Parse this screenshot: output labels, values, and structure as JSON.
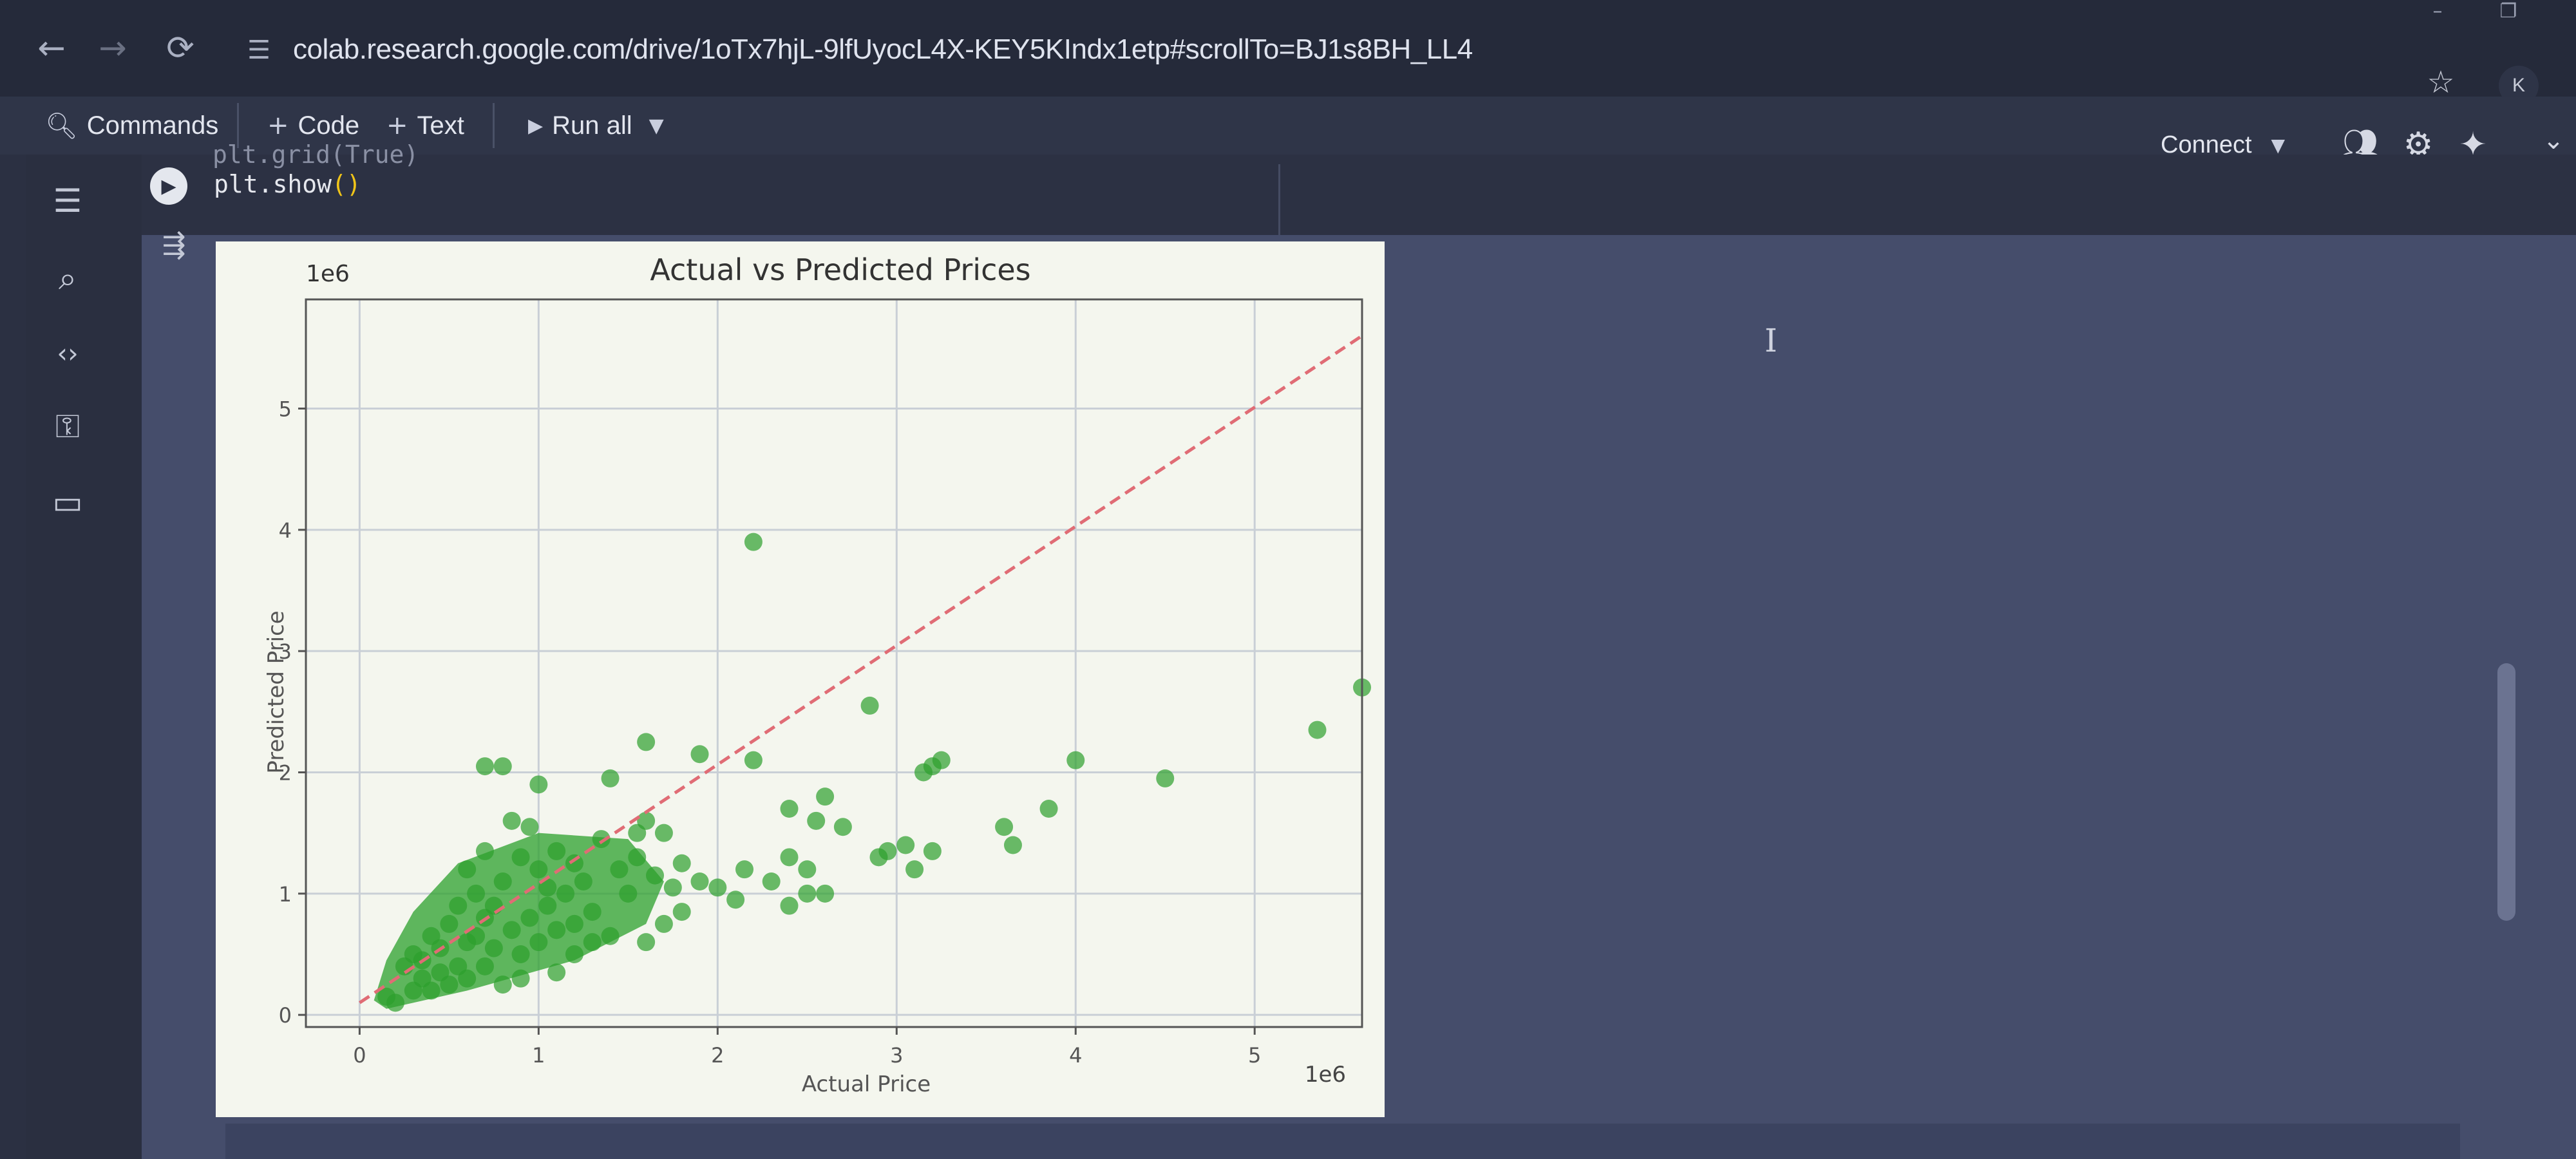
{
  "browser": {
    "url": "colab.research.google.com/drive/1oTx7hjL-9lfUyocL4X-KEY5KIndx1etp#scrollTo=BJ1s8BH_LL4",
    "profile_initial": "K",
    "icons": [
      "back-icon",
      "forward-icon",
      "reload-icon",
      "site-info-icon",
      "bookmark-star-icon"
    ]
  },
  "toolbar": {
    "commands_label": "Commands",
    "code_label": "Code",
    "text_label": "Text",
    "run_all_label": "Run all",
    "connect_label": "Connect"
  },
  "code_cell": {
    "partial_line": "plt.grid(True)",
    "line": "plt.show"
  },
  "chart_data": {
    "type": "scatter",
    "title": "Actual vs Predicted Prices",
    "xlabel": "Actual Price",
    "ylabel": "Predicted Price",
    "x_offset_label": "1e6",
    "y_offset_label": "1e6",
    "xlim": [
      -0.3,
      5.6
    ],
    "ylim": [
      -0.1,
      5.9
    ],
    "xticks": [
      0,
      1,
      2,
      3,
      4,
      5
    ],
    "yticks": [
      0,
      1,
      2,
      3,
      4,
      5
    ],
    "grid": true,
    "point_color": "#2ca02c",
    "reference_line": {
      "style": "dashed",
      "color": "#e06c75",
      "from": [
        0,
        0.1
      ],
      "to": [
        5.6,
        5.6
      ]
    },
    "points": [
      [
        2.2,
        3.9
      ],
      [
        2.85,
        2.55
      ],
      [
        5.6,
        2.7
      ],
      [
        5.35,
        2.35
      ],
      [
        4.5,
        1.95
      ],
      [
        4.0,
        2.1
      ],
      [
        3.85,
        1.7
      ],
      [
        3.6,
        1.55
      ],
      [
        3.65,
        1.4
      ],
      [
        3.25,
        2.1
      ],
      [
        3.2,
        2.05
      ],
      [
        3.15,
        2.0
      ],
      [
        2.2,
        2.1
      ],
      [
        1.9,
        2.15
      ],
      [
        1.6,
        2.25
      ],
      [
        1.4,
        1.95
      ],
      [
        0.7,
        2.05
      ],
      [
        0.8,
        2.05
      ],
      [
        1.0,
        1.9
      ],
      [
        2.6,
        1.8
      ],
      [
        2.4,
        1.7
      ],
      [
        2.7,
        1.55
      ],
      [
        2.55,
        1.6
      ],
      [
        2.95,
        1.35
      ],
      [
        3.05,
        1.4
      ],
      [
        3.1,
        1.2
      ],
      [
        2.9,
        1.3
      ],
      [
        3.2,
        1.35
      ],
      [
        2.4,
        1.3
      ],
      [
        2.5,
        1.2
      ],
      [
        2.3,
        1.1
      ],
      [
        2.15,
        1.2
      ],
      [
        2.0,
        1.05
      ],
      [
        2.1,
        0.95
      ],
      [
        2.4,
        0.9
      ],
      [
        2.5,
        1.0
      ],
      [
        2.6,
        1.0
      ],
      [
        1.8,
        0.85
      ],
      [
        1.7,
        0.75
      ],
      [
        1.6,
        0.6
      ],
      [
        1.4,
        0.65
      ],
      [
        1.1,
        0.35
      ],
      [
        0.9,
        0.3
      ],
      [
        0.8,
        0.25
      ],
      [
        1.2,
        0.5
      ],
      [
        0.3,
        0.2
      ],
      [
        0.2,
        0.1
      ],
      [
        0.4,
        0.2
      ],
      [
        0.35,
        0.3
      ],
      [
        0.5,
        0.25
      ],
      [
        0.55,
        0.4
      ],
      [
        0.6,
        0.6
      ],
      [
        0.45,
        0.55
      ],
      [
        0.7,
        0.8
      ],
      [
        0.75,
        0.55
      ],
      [
        0.85,
        0.7
      ],
      [
        0.95,
        0.8
      ],
      [
        1.05,
        0.9
      ],
      [
        1.15,
        1.0
      ],
      [
        1.25,
        1.1
      ],
      [
        1.3,
        0.85
      ],
      [
        1.45,
        1.2
      ],
      [
        1.5,
        1.0
      ],
      [
        1.55,
        1.3
      ],
      [
        1.65,
        1.15
      ],
      [
        1.75,
        1.05
      ],
      [
        1.8,
        1.25
      ],
      [
        1.9,
        1.1
      ],
      [
        0.65,
        1.0
      ],
      [
        0.55,
        0.9
      ],
      [
        0.5,
        0.75
      ],
      [
        0.4,
        0.65
      ],
      [
        0.3,
        0.5
      ],
      [
        0.25,
        0.4
      ],
      [
        0.6,
        1.2
      ],
      [
        0.8,
        1.1
      ],
      [
        0.9,
        1.3
      ],
      [
        1.0,
        1.2
      ],
      [
        1.1,
        1.35
      ],
      [
        1.2,
        1.25
      ],
      [
        0.7,
        1.35
      ],
      [
        0.85,
        1.6
      ],
      [
        0.95,
        1.55
      ],
      [
        1.35,
        1.45
      ],
      [
        1.55,
        1.5
      ],
      [
        1.6,
        1.6
      ],
      [
        1.7,
        1.5
      ],
      [
        0.6,
        0.3
      ],
      [
        0.7,
        0.4
      ],
      [
        0.9,
        0.5
      ],
      [
        1.0,
        0.6
      ],
      [
        1.1,
        0.7
      ],
      [
        1.2,
        0.75
      ],
      [
        1.3,
        0.6
      ],
      [
        0.15,
        0.15
      ],
      [
        0.35,
        0.45
      ],
      [
        0.45,
        0.35
      ],
      [
        0.65,
        0.65
      ],
      [
        0.75,
        0.9
      ],
      [
        1.05,
        1.05
      ]
    ]
  }
}
